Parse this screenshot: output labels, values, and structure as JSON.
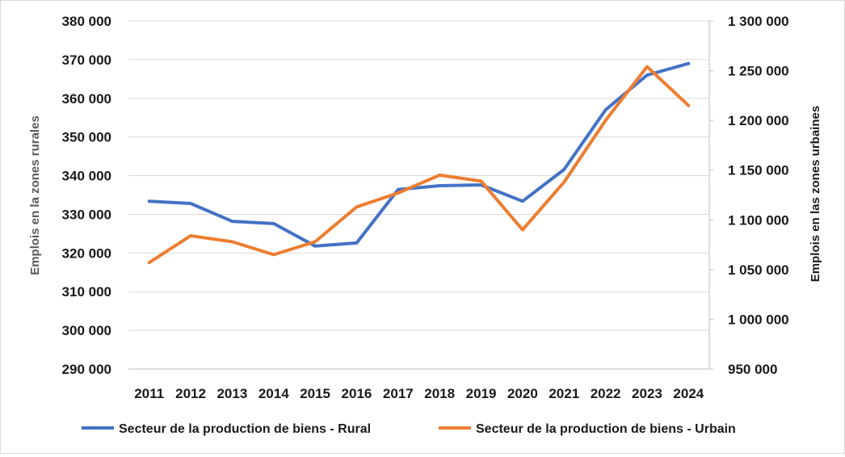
{
  "chart_data": {
    "type": "line",
    "title": "",
    "categories": [
      "2011",
      "2012",
      "2013",
      "2014",
      "2015",
      "2016",
      "2017",
      "2018",
      "2019",
      "2020",
      "2021",
      "2022",
      "2023",
      "2024"
    ],
    "series": [
      {
        "name": "Secteur de la production de biens - Rural",
        "axis": "left",
        "color": "#4472C4",
        "values": [
          333400,
          332800,
          328200,
          327600,
          321800,
          322600,
          336400,
          337400,
          337600,
          333400,
          341600,
          357000,
          366000,
          369000
        ]
      },
      {
        "name": "Secteur de la production de biens - Urbain",
        "axis": "right",
        "color": "#ED7D31",
        "values": [
          1057000,
          1084000,
          1078000,
          1065000,
          1078000,
          1113000,
          1127000,
          1145000,
          1139000,
          1090000,
          1138000,
          1200000,
          1254000,
          1215000
        ]
      }
    ],
    "y_left": {
      "label": "Emplois en la zones rurales",
      "ylim": [
        290000,
        380000
      ],
      "ticks": [
        "290 000",
        "300 000",
        "310 000",
        "320 000",
        "330 000",
        "340 000",
        "350 000",
        "360 000",
        "370 000",
        "380 000"
      ]
    },
    "y_right": {
      "label": "Emplois en las zones urbaines",
      "ylim": [
        950000,
        1300000
      ],
      "ticks": [
        "950 000",
        "1 000 000",
        "1 050 000",
        "1 100 000",
        "1 150 000",
        "1 200 000",
        "1 250 000",
        "1 300 000"
      ]
    },
    "grid": true,
    "legend_position": "bottom"
  }
}
